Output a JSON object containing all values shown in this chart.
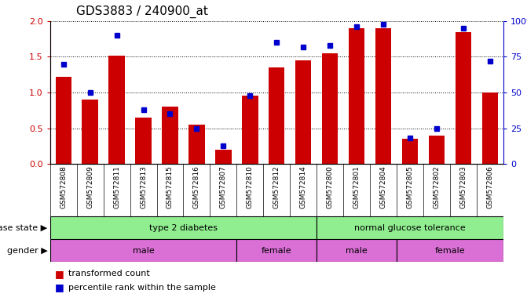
{
  "title": "GDS3883 / 240900_at",
  "samples": [
    "GSM572808",
    "GSM572809",
    "GSM572811",
    "GSM572813",
    "GSM572815",
    "GSM572816",
    "GSM572807",
    "GSM572810",
    "GSM572812",
    "GSM572814",
    "GSM572800",
    "GSM572801",
    "GSM572804",
    "GSM572805",
    "GSM572802",
    "GSM572803",
    "GSM572806"
  ],
  "red_values": [
    1.22,
    0.9,
    1.52,
    0.65,
    0.8,
    0.55,
    0.2,
    0.96,
    1.35,
    1.45,
    1.55,
    1.9,
    1.9,
    0.35,
    0.4,
    1.85,
    1.0
  ],
  "blue_values": [
    70,
    50,
    90,
    38,
    35,
    25,
    13,
    48,
    85,
    82,
    83,
    96,
    98,
    18,
    25,
    95,
    72
  ],
  "ylim_left": [
    0,
    2
  ],
  "ylim_right": [
    0,
    100
  ],
  "yticks_left": [
    0,
    0.5,
    1.0,
    1.5,
    2.0
  ],
  "yticks_right": [
    0,
    25,
    50,
    75,
    100
  ],
  "bar_color": "#CC0000",
  "marker_color": "#0000CC",
  "title_fontsize": 11,
  "disease_label": "disease state",
  "gender_label": "gender",
  "disease_groups": [
    {
      "label": "type 2 diabetes",
      "start": 0,
      "end": 10
    },
    {
      "label": "normal glucose tolerance",
      "start": 10,
      "end": 17
    }
  ],
  "gender_groups": [
    {
      "label": "male",
      "start": 0,
      "end": 7
    },
    {
      "label": "female",
      "start": 7,
      "end": 10
    },
    {
      "label": "male",
      "start": 10,
      "end": 13
    },
    {
      "label": "female",
      "start": 13,
      "end": 17
    }
  ],
  "disease_color": "#90EE90",
  "gender_color": "#DA70D6",
  "tick_bg_color": "#C8C8C8",
  "legend_items": [
    "transformed count",
    "percentile rank within the sample"
  ]
}
